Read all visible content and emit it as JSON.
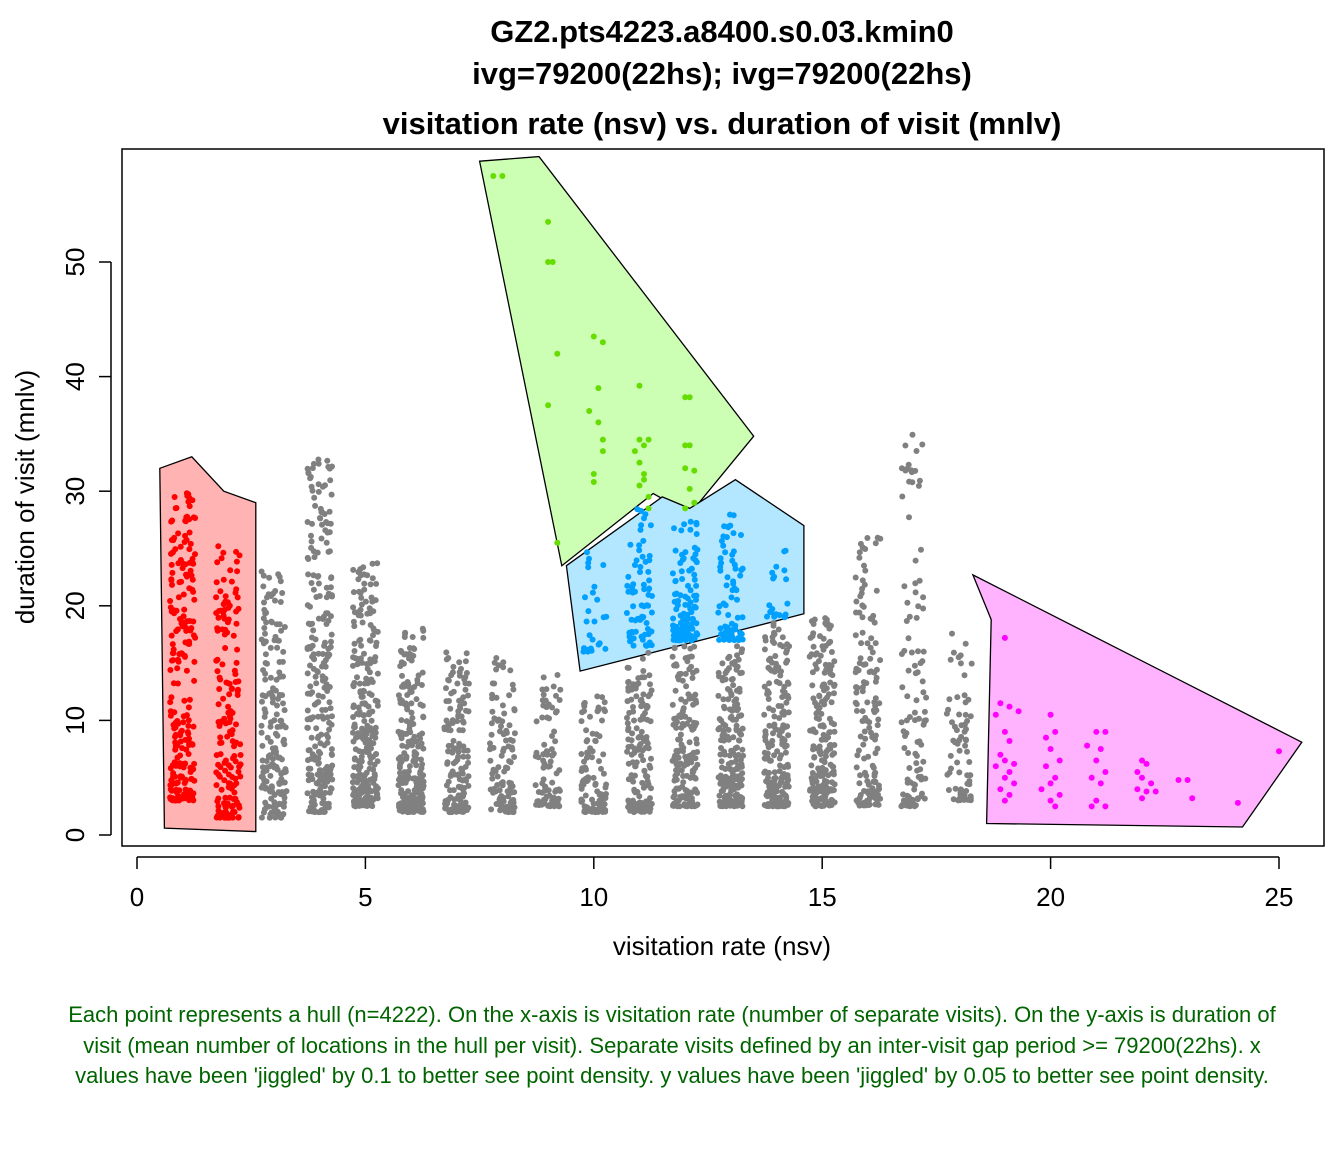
{
  "chart_data": {
    "type": "scatter",
    "title_lines": [
      "GZ2.pts4223.a8400.s0.03.kmin0",
      "ivg=79200(22hs); ivg=79200(22hs)",
      "visitation rate (nsv) vs. duration of visit (mnlv)"
    ],
    "xlabel": "visitation rate (nsv)",
    "ylabel": "duration of visit (mnlv)",
    "xlim": [
      -0.2,
      26.0
    ],
    "ylim": [
      -1.0,
      60.0
    ],
    "x_ticks": [
      0,
      5,
      10,
      15,
      20,
      25
    ],
    "y_ticks": [
      0,
      10,
      20,
      30,
      40,
      50
    ],
    "grid": false,
    "legend": "none",
    "jiggle_x": 0.1,
    "jiggle_y": 0.05,
    "series": [
      {
        "color": "#808080",
        "columns": [
          {
            "x": 3,
            "min": 1.5,
            "max": 23,
            "n": 180
          },
          {
            "x": 4,
            "min": 2,
            "max": 33,
            "n": 260
          },
          {
            "x": 5,
            "min": 2.5,
            "max": 24,
            "n": 270
          },
          {
            "x": 6,
            "min": 2,
            "max": 18,
            "n": 220
          },
          {
            "x": 7,
            "min": 2,
            "max": 16,
            "n": 150
          },
          {
            "x": 8,
            "min": 2,
            "max": 16,
            "n": 110
          },
          {
            "x": 9,
            "min": 2.5,
            "max": 14,
            "n": 90
          },
          {
            "x": 10,
            "min": 2,
            "max": 12.5,
            "n": 100
          },
          {
            "x": 11,
            "min": 2,
            "max": 16,
            "n": 150
          },
          {
            "x": 12,
            "min": 2.5,
            "max": 16.5,
            "n": 170
          },
          {
            "x": 13,
            "min": 2.5,
            "max": 16.5,
            "n": 200
          },
          {
            "x": 14,
            "min": 2.5,
            "max": 18.5,
            "n": 200
          },
          {
            "x": 15,
            "min": 2.5,
            "max": 19,
            "n": 210
          },
          {
            "x": 16,
            "min": 2.5,
            "max": 26,
            "n": 150
          },
          {
            "x": 17,
            "min": 2.5,
            "max": 35,
            "n": 110
          },
          {
            "x": 18,
            "min": 3,
            "max": 18,
            "n": 70
          }
        ]
      },
      {
        "color": "#ff0000",
        "columns": [
          {
            "x": 1,
            "min": 3,
            "max": 30,
            "n": 230
          },
          {
            "x": 2,
            "min": 1.5,
            "max": 25.5,
            "n": 170
          }
        ]
      },
      {
        "color": "#66dd00",
        "points": [
          [
            7.8,
            57.5
          ],
          [
            8.0,
            57.5
          ],
          [
            9.0,
            53.5
          ],
          [
            9.0,
            50
          ],
          [
            9.1,
            50
          ],
          [
            9.2,
            42
          ],
          [
            9.0,
            37.5
          ],
          [
            10.0,
            43.5
          ],
          [
            10.2,
            43
          ],
          [
            10.1,
            39
          ],
          [
            9.9,
            37
          ],
          [
            10.1,
            36
          ],
          [
            10.2,
            34.5
          ],
          [
            10.2,
            33.5
          ],
          [
            10.0,
            31.5
          ],
          [
            10.0,
            30.8
          ],
          [
            11.0,
            39.2
          ],
          [
            11.0,
            34.5
          ],
          [
            11.1,
            34
          ],
          [
            11.2,
            34.5
          ],
          [
            10.9,
            33.5
          ],
          [
            11.0,
            32.5
          ],
          [
            11.1,
            31.5
          ],
          [
            11.0,
            30.5
          ],
          [
            11.2,
            29.5
          ],
          [
            11.1,
            31
          ],
          [
            12.0,
            38.2
          ],
          [
            12.1,
            38.2
          ],
          [
            12.0,
            34
          ],
          [
            12.1,
            34
          ],
          [
            12.0,
            32
          ],
          [
            12.2,
            31.8
          ],
          [
            12.1,
            30.2
          ],
          [
            12.2,
            29
          ],
          [
            12.0,
            28.5
          ],
          [
            9.2,
            25.5
          ],
          [
            11.2,
            28.5
          ]
        ]
      },
      {
        "color": "#00a0ff",
        "columns": [
          {
            "x": 10,
            "min": 16,
            "max": 25,
            "n": 25
          },
          {
            "x": 11,
            "min": 16.5,
            "max": 28.5,
            "n": 70
          },
          {
            "x": 12,
            "min": 17,
            "max": 27.5,
            "n": 110
          },
          {
            "x": 13,
            "min": 17,
            "max": 28,
            "n": 70
          },
          {
            "x": 14,
            "min": 19,
            "max": 26,
            "n": 20
          }
        ]
      },
      {
        "color": "#ff00ff",
        "points": [
          [
            19.0,
            17.2
          ],
          [
            18.9,
            11.5
          ],
          [
            19.1,
            11.2
          ],
          [
            19.3,
            10.8
          ],
          [
            18.8,
            10.5
          ],
          [
            19.0,
            9
          ],
          [
            19.1,
            8.2
          ],
          [
            18.9,
            7
          ],
          [
            19.0,
            6.5
          ],
          [
            19.2,
            6.2
          ],
          [
            18.8,
            6
          ],
          [
            19.1,
            5.5
          ],
          [
            19.0,
            5
          ],
          [
            19.2,
            4.5
          ],
          [
            18.9,
            4
          ],
          [
            19.1,
            3.5
          ],
          [
            19.0,
            3
          ],
          [
            20.0,
            10.5
          ],
          [
            20.1,
            9
          ],
          [
            19.9,
            8.5
          ],
          [
            20.0,
            7.5
          ],
          [
            20.2,
            6.5
          ],
          [
            19.9,
            6
          ],
          [
            20.1,
            5
          ],
          [
            20.0,
            4.5
          ],
          [
            19.8,
            4
          ],
          [
            20.2,
            3.5
          ],
          [
            20.0,
            3
          ],
          [
            20.1,
            2.5
          ],
          [
            21.0,
            9
          ],
          [
            21.2,
            9
          ],
          [
            20.8,
            7.8
          ],
          [
            21.1,
            7.5
          ],
          [
            21.0,
            6.5
          ],
          [
            21.2,
            5.5
          ],
          [
            20.9,
            5
          ],
          [
            21.1,
            4.5
          ],
          [
            21.0,
            3
          ],
          [
            20.9,
            2.5
          ],
          [
            21.2,
            2.5
          ],
          [
            22.0,
            6.5
          ],
          [
            22.1,
            6.2
          ],
          [
            21.9,
            5.5
          ],
          [
            22.0,
            5
          ],
          [
            22.2,
            4.5
          ],
          [
            21.9,
            4
          ],
          [
            22.1,
            3.8
          ],
          [
            22.0,
            3.2
          ],
          [
            22.3,
            3.8
          ],
          [
            23.0,
            4.8
          ],
          [
            22.8,
            4.8
          ],
          [
            23.1,
            3.2
          ],
          [
            24.1,
            2.8
          ],
          [
            25.0,
            7.3
          ]
        ]
      }
    ],
    "hulls": [
      {
        "fill": "#ffb3b3",
        "points": [
          [
            0.5,
            32
          ],
          [
            1.2,
            33
          ],
          [
            1.9,
            30
          ],
          [
            2.6,
            29
          ],
          [
            2.6,
            0.3
          ],
          [
            0.6,
            0.6
          ]
        ]
      },
      {
        "fill": "#ccffb3",
        "points": [
          [
            7.5,
            58.8
          ],
          [
            8.8,
            59.2
          ],
          [
            13.5,
            34.8
          ],
          [
            12.1,
            28
          ],
          [
            11.3,
            29.8
          ],
          [
            9.3,
            23.5
          ]
        ]
      },
      {
        "fill": "#b3e6ff",
        "points": [
          [
            9.4,
            23.5
          ],
          [
            11.5,
            29.5
          ],
          [
            12.1,
            28.5
          ],
          [
            13.1,
            31
          ],
          [
            14.6,
            27
          ],
          [
            14.6,
            19.3
          ],
          [
            9.7,
            14.3
          ]
        ]
      },
      {
        "fill": "#ffb3ff",
        "points": [
          [
            18.3,
            22.7
          ],
          [
            18.7,
            18.8
          ],
          [
            18.6,
            1
          ],
          [
            24.2,
            0.7
          ],
          [
            25.5,
            8.1
          ]
        ]
      }
    ]
  },
  "caption": "Each point represents a hull (n=4222). On the x-axis is visitation rate (number of separate visits). On the y-axis is duration of visit (mean number of locations in the hull per visit). Separate visits defined by an inter-visit gap period >= 79200(22hs). x values have been 'jiggled' by 0.1 to better see point density. y values have been 'jiggled' by 0.05 to better see point density."
}
